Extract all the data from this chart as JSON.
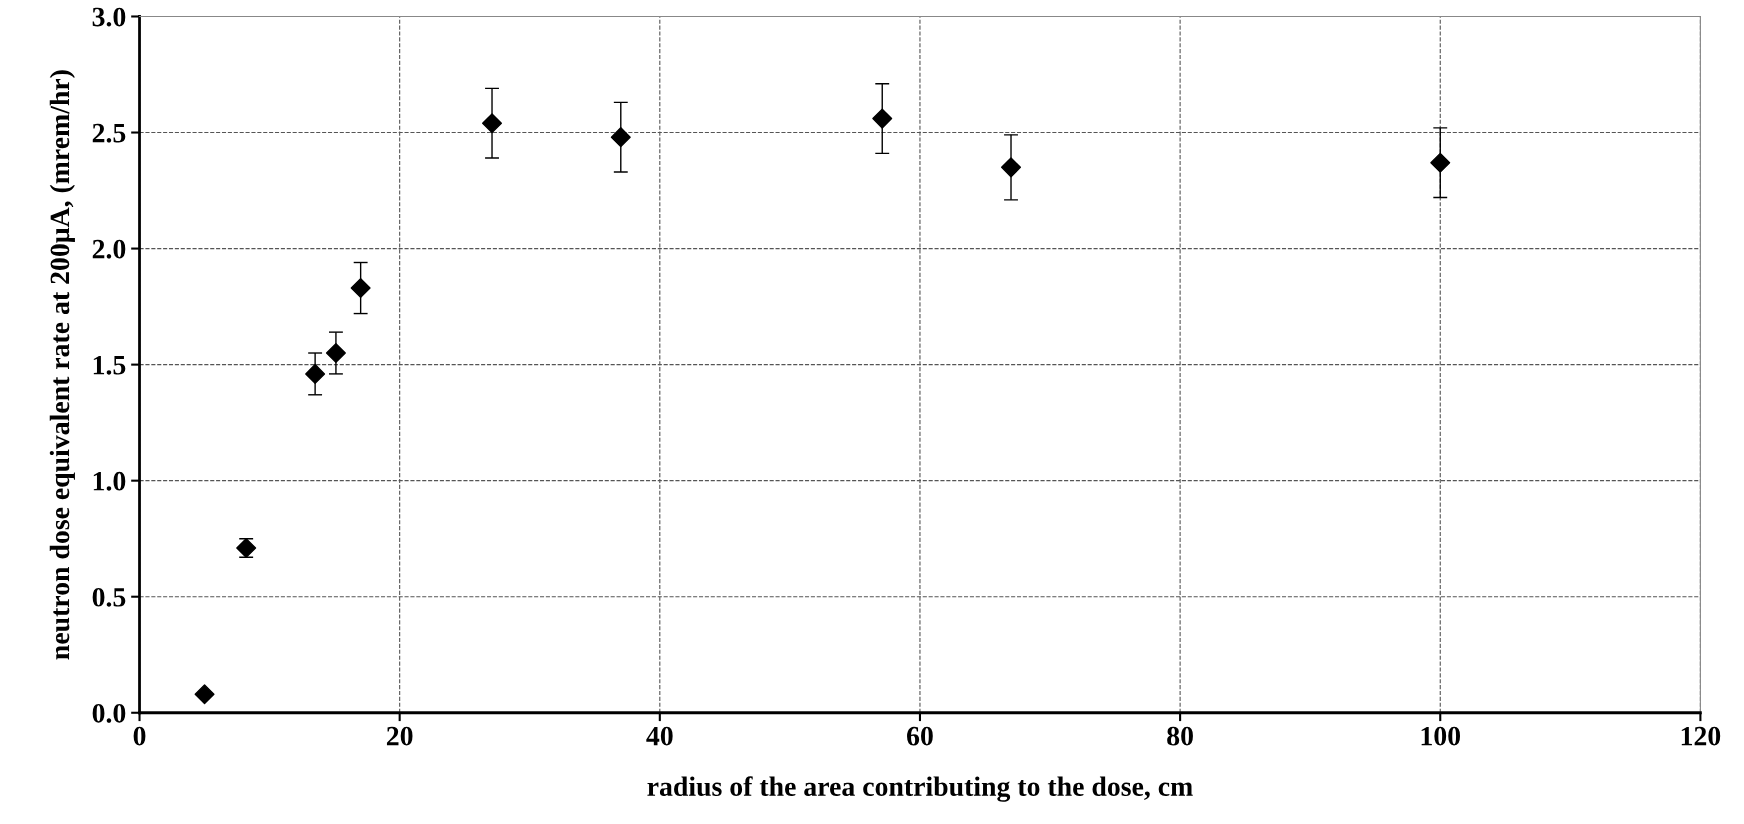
{
  "chart_data": {
    "type": "scatter",
    "xlabel": "radius of the area contributing to the dose, cm",
    "ylabel": "neutron dose equivalent rate at 200μA, (mrem/hr)",
    "x": [
      5,
      8.2,
      13.5,
      15.1,
      17.0,
      27.1,
      37.0,
      57.1,
      67.0,
      100
    ],
    "values": [
      0.08,
      0.71,
      1.46,
      1.55,
      1.83,
      2.54,
      2.48,
      2.56,
      2.35,
      2.37
    ],
    "errors": [
      null,
      0.04,
      0.09,
      0.09,
      0.11,
      0.15,
      0.15,
      0.15,
      0.14,
      0.15
    ],
    "color": "#000000",
    "marker": "diamond",
    "xlim": [
      0,
      120
    ],
    "xticks": [
      0,
      20,
      40,
      60,
      80,
      100,
      120
    ],
    "ylim": [
      0,
      3.0
    ],
    "yticks": [
      {
        "value": 0,
        "label": "0.0"
      },
      0.5,
      {
        "value": 1,
        "label": "1.0"
      },
      1.5,
      {
        "value": 2,
        "label": "2.0"
      },
      2.5,
      {
        "value": 3,
        "label": "3.0"
      }
    ],
    "grid": true,
    "line_style": "dashed"
  }
}
